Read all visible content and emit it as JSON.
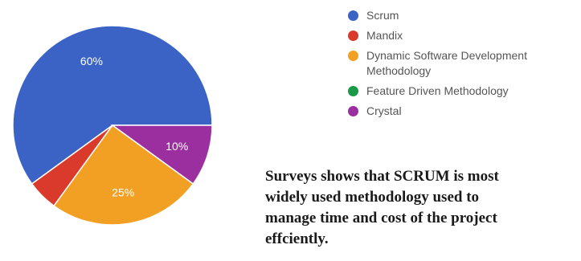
{
  "chart_data": {
    "type": "pie",
    "series": [
      {
        "name": "Scrum",
        "value": 60,
        "color": "#3b63c5",
        "label": "60%"
      },
      {
        "name": "Mandix",
        "value": 5,
        "color": "#d93a2b",
        "label": ""
      },
      {
        "name": "Dynamic Software Development Methodology",
        "value": 25,
        "color": "#f2a024",
        "label": "25%"
      },
      {
        "name": "Feature Driven Methodology",
        "value": 0,
        "color": "#1a9a48",
        "label": ""
      },
      {
        "name": "Crystal",
        "value": 10,
        "color": "#9c2fa0",
        "label": "10%"
      }
    ],
    "legend": {
      "position": "right",
      "items": [
        {
          "name": "Scrum",
          "color": "#3b63c5",
          "label_lines": [
            "Scrum"
          ]
        },
        {
          "name": "Mandix",
          "color": "#d93a2b",
          "label_lines": [
            "Mandix"
          ]
        },
        {
          "name": "Dynamic Software Development Methodology",
          "color": "#f2a024",
          "label_lines": [
            "Dynamic Software Development",
            "Methodology"
          ]
        },
        {
          "name": "Feature Driven Methodology",
          "color": "#1a9a48",
          "label_lines": [
            "Feature Driven Methodology"
          ]
        },
        {
          "name": "Crystal",
          "color": "#9c2fa0",
          "label_lines": [
            "Crystal"
          ]
        }
      ]
    }
  },
  "note": {
    "lines": [
      "Surveys shows that SCRUM is most",
      "widely used methodology used to",
      "manage time and cost of the project",
      "effciently."
    ]
  }
}
